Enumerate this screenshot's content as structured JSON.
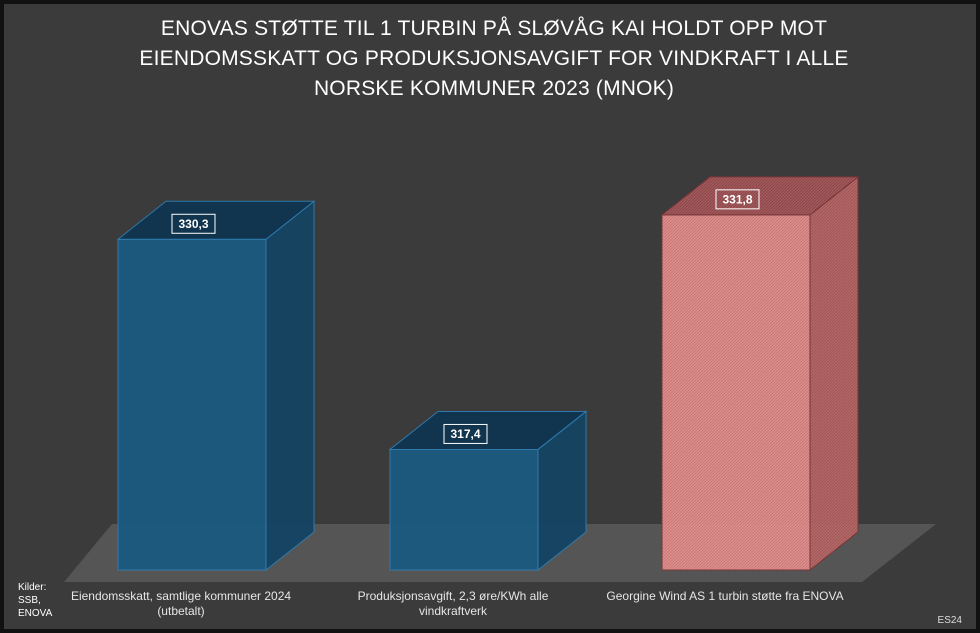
{
  "chart_data": {
    "type": "bar",
    "title": "ENOVAS STØTTE TIL 1 TURBIN PÅ SLØVÅG KAI HOLDT OPP MOT EIENDOMSSKATT OG PRODUKSJONSAVGIFT FOR VINDKRAFT I ALLE NORSKE KOMMUNER 2023 (MNOK)",
    "title_lines": [
      "ENOVAS STØTTE TIL 1 TURBIN PÅ SLØVÅG KAI HOLDT OPP MOT",
      "EIENDOMSSKATT OG PRODUKSJONSAVGIFT FOR VINDKRAFT I ALLE",
      "NORSKE KOMMUNER 2023 (MNOK)"
    ],
    "categories": [
      "Eiendomsskatt, samtlige kommuner 2024 (utbetalt)",
      "Produksjonsavgift, 2,3 øre/KWh alle vindkraftverk",
      "Georgine Wind AS 1 turbin støtte fra ENOVA"
    ],
    "category_lines": [
      [
        "Eiendomsskatt, samtlige kommuner 2024",
        "(utbetalt)"
      ],
      [
        "Produksjonsavgift, 2,3 øre/KWh alle",
        "vindkraftverk"
      ],
      [
        "Georgine Wind AS 1 turbin støtte fra ENOVA"
      ]
    ],
    "values": [
      330.3,
      317.4,
      331.8
    ],
    "data_labels": [
      "330,3",
      "317,4",
      "331,8"
    ],
    "ylim": [
      310,
      334
    ],
    "xlabel": "",
    "ylabel": "",
    "grid": false,
    "legend": "none",
    "style": "3d-column"
  },
  "colors": {
    "background": "#3b3b3b",
    "floor": "#5a5a5a",
    "series_blue": "#1d5a7e",
    "series_pink": "#e08a8a",
    "text": "#ffffff"
  },
  "source_note": "Kilder:\nSSB,\nENOVA",
  "signature": "ES24"
}
